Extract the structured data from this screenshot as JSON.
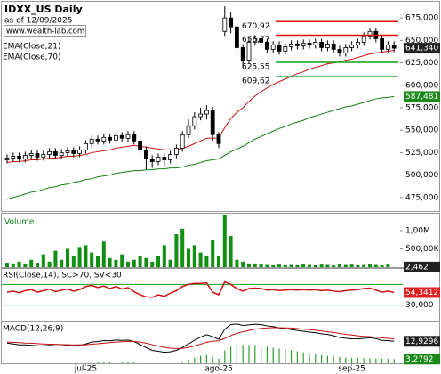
{
  "chart_data": [
    {
      "type": "candlestick",
      "title": "IDXX_US Daily",
      "subtitle": "as of 12/09/2025",
      "source": "www.wealth-lab.com",
      "categories": [
        null,
        null,
        null,
        null,
        null,
        null,
        null,
        null,
        null,
        null,
        null,
        null,
        null,
        "jul-25",
        null,
        null,
        null,
        null,
        null,
        null,
        null,
        null,
        null,
        null,
        null,
        null,
        null,
        null,
        null,
        null,
        null,
        null,
        null,
        null,
        null,
        "ago-25",
        null,
        null,
        null,
        null,
        null,
        null,
        null,
        null,
        null,
        null,
        null,
        null,
        null,
        null,
        null,
        null,
        null,
        null,
        null,
        null,
        null,
        "sep-25",
        null,
        null,
        null,
        null,
        null,
        null,
        null
      ],
      "open": [
        517,
        519,
        521,
        518,
        522,
        524,
        520,
        523,
        526,
        522,
        525,
        527,
        524,
        528,
        535,
        540,
        538,
        542,
        539,
        544,
        541,
        545,
        538,
        528,
        518,
        515,
        520,
        517,
        523,
        530,
        545,
        555,
        565,
        568,
        572,
        545,
        660,
        675,
        665,
        642,
        628,
        648,
        652,
        648,
        640,
        645,
        638,
        643,
        646,
        644,
        647,
        645,
        648,
        642,
        646,
        640,
        636,
        642,
        645,
        648,
        655,
        660,
        652,
        640,
        645
      ],
      "high": [
        523,
        525,
        525,
        526,
        528,
        528,
        527,
        530,
        530,
        529,
        531,
        531,
        532,
        539,
        544,
        544,
        546,
        546,
        548,
        548,
        549,
        549,
        542,
        532,
        522,
        524,
        524,
        527,
        534,
        549,
        562,
        570,
        575,
        578,
        576,
        548,
        688,
        682,
        668,
        646,
        652,
        656,
        656,
        652,
        649,
        649,
        647,
        650,
        650,
        651,
        651,
        652,
        652,
        650,
        650,
        644,
        646,
        649,
        652,
        659,
        664,
        664,
        656,
        649,
        649
      ],
      "low": [
        513,
        515,
        514,
        514,
        518,
        516,
        516,
        519,
        518,
        518,
        521,
        520,
        520,
        524,
        531,
        534,
        534,
        535,
        535,
        537,
        537,
        534,
        524,
        506,
        508,
        511,
        510,
        513,
        519,
        526,
        541,
        551,
        561,
        562,
        538,
        530,
        655,
        658,
        636,
        620,
        624,
        644,
        644,
        636,
        636,
        634,
        634,
        639,
        640,
        640,
        641,
        641,
        638,
        638,
        636,
        632,
        632,
        638,
        641,
        644,
        651,
        648,
        636,
        636,
        637
      ],
      "close": [
        519,
        521,
        518,
        522,
        524,
        520,
        523,
        526,
        522,
        525,
        527,
        524,
        528,
        535,
        540,
        538,
        542,
        539,
        544,
        541,
        545,
        538,
        528,
        518,
        515,
        520,
        517,
        523,
        530,
        545,
        555,
        565,
        568,
        572,
        545,
        535,
        675,
        665,
        642,
        628,
        648,
        652,
        648,
        640,
        645,
        638,
        643,
        646,
        644,
        647,
        645,
        648,
        642,
        646,
        640,
        636,
        642,
        645,
        648,
        655,
        660,
        652,
        640,
        645,
        641.34
      ],
      "ylim": [
        460,
        693
      ],
      "yticks": [
        {
          "value": 475,
          "label": "475,000"
        },
        {
          "value": 500,
          "label": "500,000"
        },
        {
          "value": 525,
          "label": "525,000"
        },
        {
          "value": 550,
          "label": "550,000"
        },
        {
          "value": 575,
          "label": "575,000"
        },
        {
          "value": 600,
          "label": "600,000"
        },
        {
          "value": 625,
          "label": "625,000"
        },
        {
          "value": 650,
          "label": "650,000"
        },
        {
          "value": 675,
          "label": "675,000"
        }
      ],
      "series": [
        {
          "name": "EMA(Close,21)",
          "color": "#d01010",
          "values": [
            514,
            515,
            515,
            516,
            517,
            517,
            518,
            519,
            519,
            520,
            521,
            521,
            522,
            523,
            525,
            526,
            527,
            528,
            530,
            531,
            532,
            533,
            532,
            531,
            530,
            529,
            528,
            528,
            528,
            530,
            532,
            535,
            538,
            541,
            541,
            541,
            553,
            563,
            570,
            575,
            582,
            588,
            593,
            597,
            601,
            604,
            607,
            610,
            613,
            615,
            618,
            620,
            622,
            624,
            625,
            626,
            628,
            629,
            631,
            633,
            635,
            636,
            637,
            638,
            639
          ]
        },
        {
          "name": "EMA(Close,70)",
          "color": "#108010",
          "values": [
            473,
            475,
            477,
            479,
            481,
            482,
            484,
            486,
            487,
            489,
            490,
            492,
            493,
            495,
            496,
            498,
            499,
            500,
            502,
            503,
            504,
            505,
            505,
            506,
            506,
            507,
            507,
            508,
            508,
            509,
            511,
            512,
            514,
            516,
            517,
            518,
            522,
            526,
            529,
            532,
            536,
            540,
            543,
            546,
            549,
            552,
            554,
            557,
            559,
            561,
            564,
            566,
            568,
            570,
            572,
            574,
            576,
            577,
            579,
            581,
            583,
            585,
            586,
            586.5,
            587.481
          ]
        }
      ],
      "levels": [
        {
          "value": 670.92,
          "label": "670,92",
          "color": "#e01010"
        },
        {
          "value": 655.77,
          "label": "655,77",
          "color": "#e01010"
        },
        {
          "value": 625.55,
          "label": "625,55",
          "color": "#10a010"
        },
        {
          "value": 609.62,
          "label": "609,62",
          "color": "#10a010"
        }
      ],
      "last_labels": [
        {
          "value": 641.34,
          "label": "641,340",
          "color": "#222222"
        },
        {
          "value": 587.481,
          "label": "587,481",
          "color": "#1a8a1a"
        }
      ]
    },
    {
      "type": "bar",
      "title": "Volume",
      "color": "#109010",
      "values": [
        0.12,
        0.1,
        0.15,
        0.1,
        0.2,
        0.12,
        0.35,
        0.15,
        0.45,
        0.2,
        0.5,
        0.3,
        0.55,
        0.6,
        0.4,
        0.3,
        0.7,
        0.25,
        0.2,
        0.35,
        0.15,
        0.2,
        0.3,
        0.25,
        0.15,
        0.3,
        0.6,
        0.2,
        0.9,
        1.05,
        0.5,
        0.6,
        0.4,
        0.3,
        0.75,
        0.3,
        1.42,
        0.85,
        0.2,
        0.15,
        0.1,
        0.1,
        0.08,
        0.06,
        0.05,
        0.07,
        0.05,
        0.06,
        0.05,
        0.08,
        0.06,
        0.05,
        0.07,
        0.06,
        0.05,
        0.08,
        0.06,
        0.07,
        0.05,
        0.06,
        0.08,
        0.06,
        0.05,
        0.07,
        0.002462
      ],
      "ylim": [
        0,
        1.46
      ],
      "yticks": [
        {
          "value": 0.5,
          "label": "500,00K"
        },
        {
          "value": 1,
          "label": "1,00M"
        }
      ],
      "last_labels": [
        {
          "value": 0.002462,
          "label": "2,462",
          "color": "#222222"
        }
      ]
    },
    {
      "type": "line",
      "title": "RSI(Close,14), SC>70, SV<30",
      "color": "#d01010",
      "values": [
        55,
        57,
        54,
        58,
        60,
        55,
        58,
        61,
        56,
        59,
        61,
        57,
        60,
        66,
        68,
        64,
        67,
        62,
        66,
        61,
        64,
        56,
        50,
        46,
        45,
        50,
        47,
        53,
        58,
        66,
        70,
        72,
        72,
        73,
        55,
        50,
        75,
        70,
        62,
        57,
        62,
        63,
        62,
        59,
        60,
        58,
        59,
        60,
        59,
        60,
        59,
        60,
        58,
        59,
        57,
        56,
        58,
        59,
        60,
        62,
        63,
        59,
        55,
        57,
        54.3412
      ],
      "ylim": [
        0,
        100
      ],
      "bands": [
        70,
        30
      ],
      "band_color": "#10a010",
      "yticks": [
        {
          "value": 30,
          "label": "30,000"
        }
      ],
      "last_labels": [
        {
          "value": 54.3412,
          "label": "54,3412",
          "color": "#e02020"
        }
      ]
    },
    {
      "type": "macd",
      "title": "MACD(12,26,9)",
      "series": [
        {
          "color": "#000000",
          "values": [
            12,
            11.5,
            11,
            11,
            10.8,
            10.5,
            10.5,
            10.8,
            10.5,
            10.5,
            10.7,
            10.5,
            10.8,
            11.5,
            12.5,
            12.8,
            13.3,
            13.2,
            13.6,
            13.4,
            13.6,
            12.8,
            11.2,
            9.5,
            8,
            7.5,
            7,
            7.2,
            8,
            9.6,
            11.5,
            13.5,
            15.2,
            16.5,
            15.5,
            14,
            19.5,
            22,
            22.3,
            21.5,
            21.8,
            22.2,
            22,
            21.3,
            20.9,
            20.2,
            19.7,
            19.3,
            18.8,
            18.4,
            17.9,
            17.6,
            17,
            16.6,
            15.9,
            15,
            14.6,
            14.3,
            14.2,
            14.5,
            14.8,
            14.4,
            13.4,
            13.3,
            12.9296
          ]
        },
        {
          "color": "#c01010",
          "values": [
            12.5,
            12.4,
            12.2,
            12,
            11.9,
            11.7,
            11.5,
            11.4,
            11.3,
            11.2,
            11.1,
            11,
            11,
            11.1,
            11.4,
            11.6,
            11.9,
            12.2,
            12.5,
            12.7,
            12.9,
            12.9,
            12.5,
            11.9,
            11.1,
            10.4,
            9.7,
            9.2,
            9,
            9.1,
            9.6,
            10.4,
            11.4,
            12.4,
            13,
            13.2,
            14.5,
            16,
            17.3,
            18.1,
            18.8,
            19.5,
            19.9,
            20.2,
            20.3,
            20.3,
            20.2,
            20.1,
            19.8,
            19.5,
            19.2,
            18.9,
            18.5,
            18.1,
            17.7,
            17.2,
            16.7,
            16.3,
            15.9,
            15.6,
            15.4,
            15.2,
            14.8,
            14.5,
            14.3
          ]
        }
      ],
      "histogram": {
        "color": "#30a030",
        "values": [
          0.5,
          0.4,
          0.3,
          0.5,
          0.4,
          0.3,
          0.5,
          0.6,
          0.4,
          0.5,
          0.6,
          0.5,
          0.6,
          1,
          1.5,
          1.7,
          2,
          1.8,
          2,
          1.9,
          2,
          1.5,
          0.8,
          0.3,
          0.2,
          0.2,
          0.3,
          0.5,
          1,
          2,
          3,
          4,
          5,
          5.5,
          4.5,
          3.5,
          8,
          10,
          11,
          11,
          11,
          11,
          10.5,
          10,
          9.5,
          9,
          8.5,
          8,
          7.5,
          7,
          6.5,
          6,
          5.5,
          5,
          4.8,
          4.5,
          4.2,
          4,
          3.9,
          3.8,
          3.7,
          3.6,
          3.5,
          3.4,
          3.2792
        ]
      },
      "ylim": [
        1,
        23.2
      ],
      "last_labels": [
        {
          "value": 12.9296,
          "label": "12,9296",
          "color": "#222222"
        },
        {
          "value": 3.2792,
          "label": "3,2792",
          "color": "#1a8a1a"
        }
      ]
    }
  ]
}
